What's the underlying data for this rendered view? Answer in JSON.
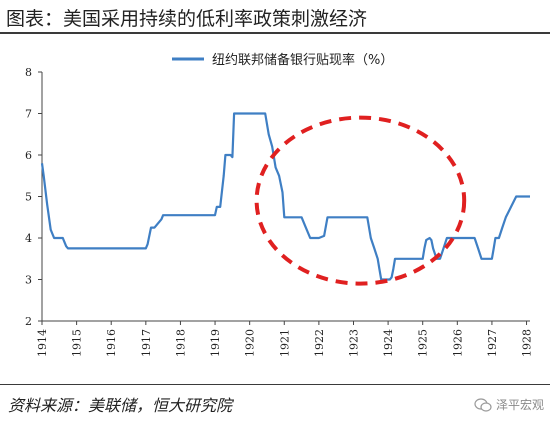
{
  "title": "图表：美国采用持续的低利率政策刺激经济",
  "source": "资料来源：美联储，恒大研究院",
  "watermark": {
    "text": "泽平宏观",
    "icon": "wechat-icon"
  },
  "colors": {
    "line": "#3f7fc4",
    "circle": "#e02020",
    "axis": "#444444"
  },
  "chart_data": {
    "type": "line",
    "title": "",
    "xlabel": "",
    "ylabel": "",
    "ylim": [
      2,
      8
    ],
    "yticks": [
      2,
      3,
      4,
      5,
      6,
      7,
      8
    ],
    "xlim": [
      1914.0,
      1928.1
    ],
    "xticks": [
      "1914",
      "1915",
      "1916",
      "1917",
      "1918",
      "1919",
      "1920",
      "1921",
      "1922",
      "1923",
      "1924",
      "1925",
      "1926",
      "1927",
      "1928"
    ],
    "grid": false,
    "legend_position": "top",
    "annotation": "red dashed ellipse highlighting 1920-1926",
    "series": [
      {
        "name": "纽约联邦储备银行贴现率（%）",
        "x": [
          1914.0,
          1914.05,
          1914.15,
          1914.25,
          1914.35,
          1914.45,
          1914.6,
          1914.65,
          1914.7,
          1914.75,
          1915.0,
          1917.0,
          1917.05,
          1917.15,
          1917.25,
          1917.45,
          1917.5,
          1919.0,
          1919.05,
          1919.15,
          1919.25,
          1919.3,
          1919.45,
          1919.5,
          1919.55,
          1920.45,
          1920.55,
          1920.65,
          1920.75,
          1920.85,
          1920.95,
          1921.0,
          1921.5,
          1921.6,
          1921.75,
          1922.0,
          1922.15,
          1922.25,
          1923.4,
          1923.5,
          1923.6,
          1923.7,
          1923.75,
          1923.8,
          1924.0,
          1924.05,
          1924.1,
          1924.15,
          1924.2,
          1925.0,
          1925.05,
          1925.1,
          1925.2,
          1925.25,
          1925.3,
          1925.4,
          1925.5,
          1925.6,
          1925.7,
          1925.8,
          1925.9,
          1926.0,
          1926.5,
          1926.6,
          1926.7,
          1926.75,
          1927.0,
          1927.05,
          1927.1,
          1927.2,
          1927.3,
          1927.4,
          1927.55,
          1927.7,
          1928.1
        ],
        "values": [
          5.8,
          5.5,
          4.8,
          4.2,
          4.0,
          4.0,
          4.0,
          3.9,
          3.8,
          3.75,
          3.75,
          3.75,
          3.85,
          4.25,
          4.25,
          4.45,
          4.55,
          4.55,
          4.75,
          4.75,
          5.5,
          6.0,
          6.0,
          5.95,
          7.0,
          7.0,
          6.5,
          6.2,
          5.7,
          5.5,
          5.1,
          4.5,
          4.5,
          4.3,
          4.0,
          4.0,
          4.05,
          4.5,
          4.5,
          4.0,
          3.75,
          3.5,
          3.25,
          3.0,
          3.0,
          3.0,
          3.05,
          3.25,
          3.5,
          3.5,
          3.75,
          3.95,
          4.0,
          3.95,
          3.75,
          3.5,
          3.5,
          3.75,
          4.0,
          4.0,
          4.0,
          4.0,
          4.0,
          3.75,
          3.5,
          3.5,
          3.5,
          3.75,
          4.0,
          4.0,
          4.25,
          4.5,
          4.75,
          5.0,
          5.0
        ]
      }
    ]
  }
}
